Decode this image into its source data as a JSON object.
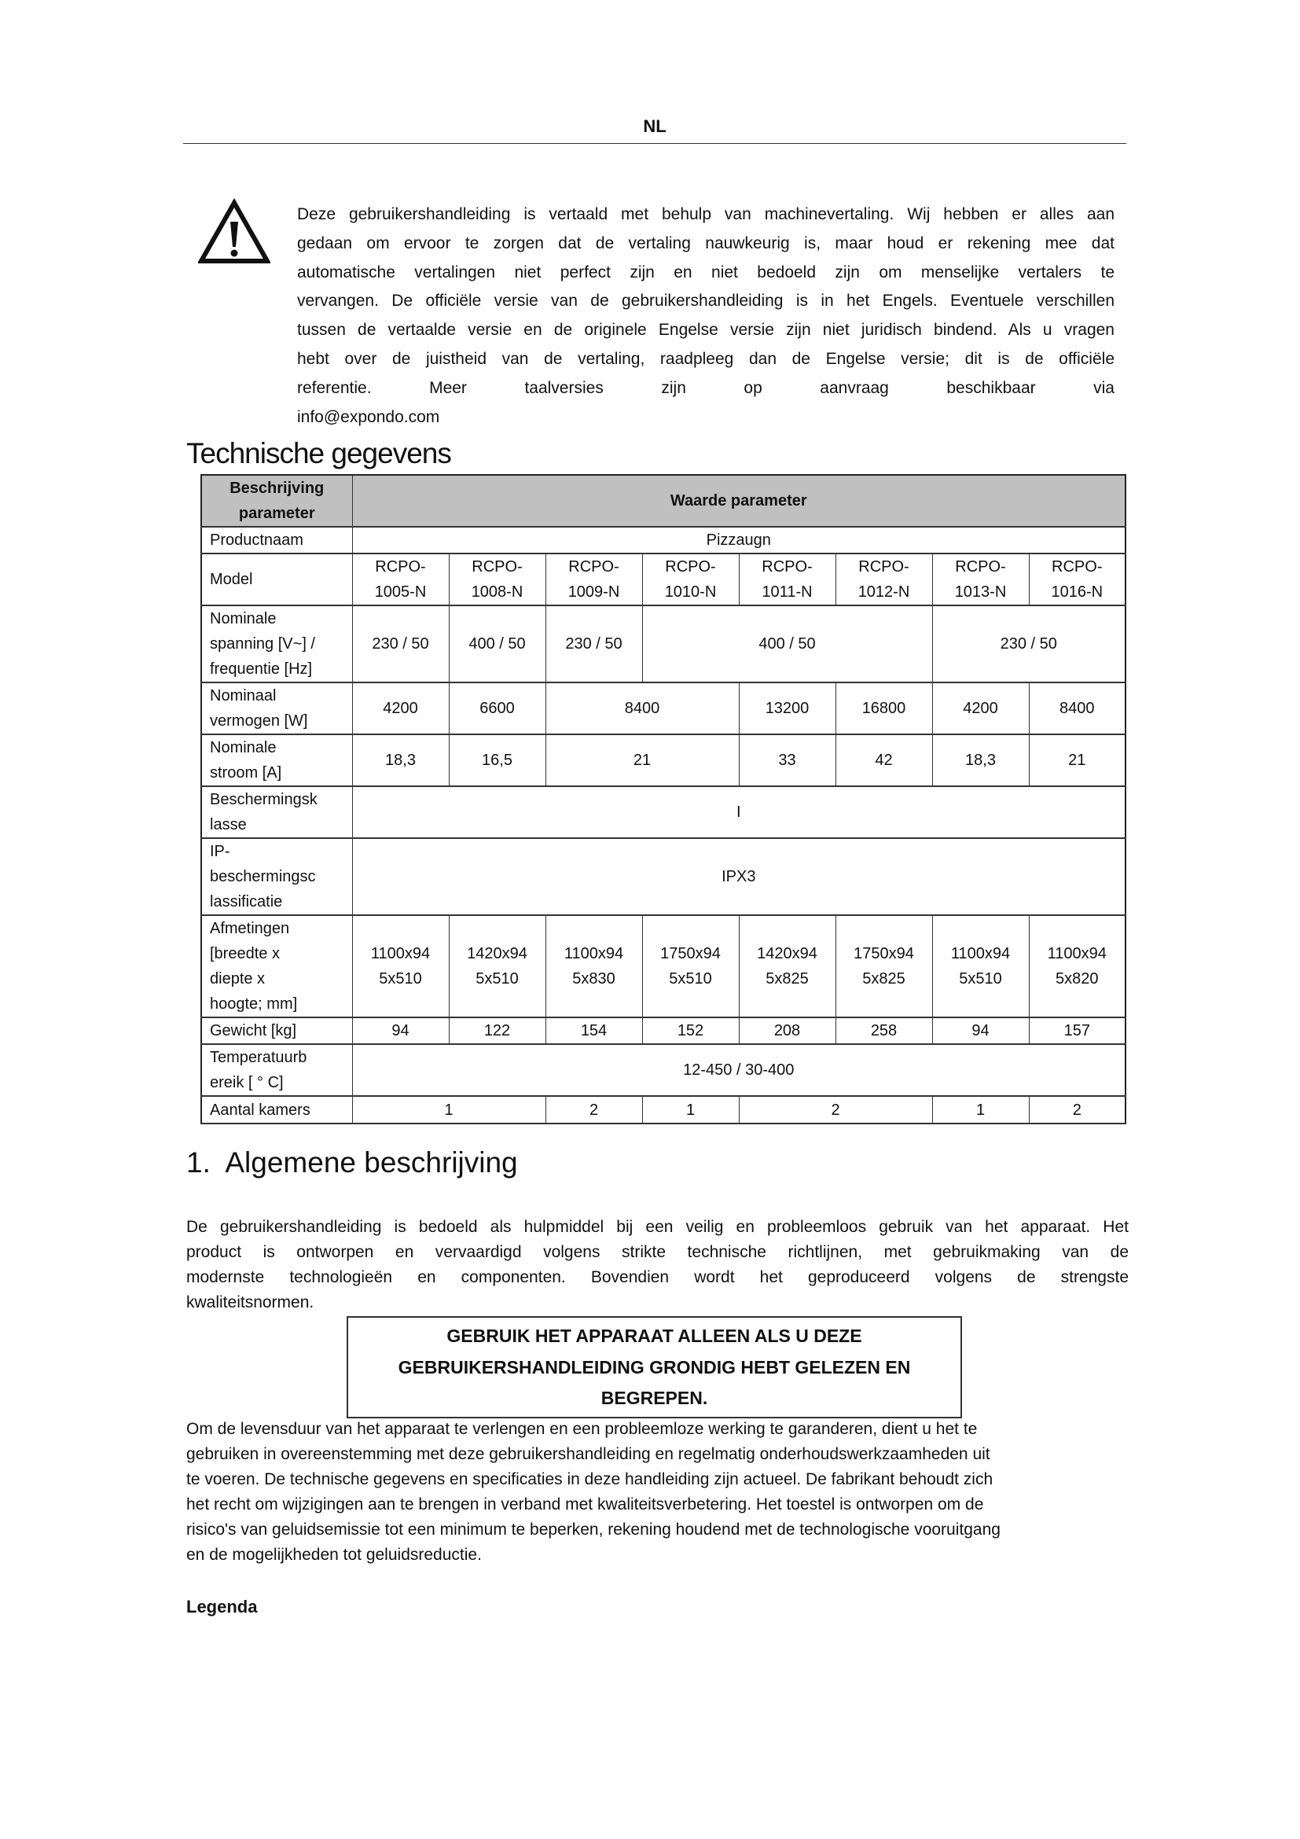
{
  "header": {
    "language": "NL"
  },
  "warning": {
    "icon": "warning-triangle-icon",
    "lines": [
      "Deze gebruikershandleiding is vertaald met behulp van machinevertaling. Wij hebben er alles aan",
      "gedaan om ervoor te zorgen dat de vertaling nauwkeurig is, maar houd er rekening mee dat",
      "automatische vertalingen niet perfect zijn en niet bedoeld zijn om menselijke vertalers te",
      "vervangen. De officiële versie van de gebruikershandleiding is in het Engels. Eventuele verschillen",
      "tussen de vertaalde versie en de originele Engelse versie zijn niet juridisch bindend. Als u vragen",
      "hebt over de juistheid van de vertaling, raadpleeg dan de Engelse versie; dit is de officiële",
      "referentie. Meer taalversies zijn op aanvraag beschikbaar via",
      "info@expondo.com"
    ]
  },
  "tech_title": "Technische gegevens",
  "table": {
    "header": {
      "label": [
        "Beschrijving",
        "parameter"
      ],
      "value": "Waarde parameter"
    },
    "rows": [
      {
        "label": [
          "Productnaam"
        ],
        "cells": [
          {
            "text": [
              "Pizzaugn"
            ],
            "span": 8
          }
        ]
      },
      {
        "label": [
          "Model"
        ],
        "cells": [
          {
            "text": [
              "RCPO-",
              "1005-N"
            ],
            "span": 1
          },
          {
            "text": [
              "RCPO-",
              "1008-N"
            ],
            "span": 1
          },
          {
            "text": [
              "RCPO-",
              "1009-N"
            ],
            "span": 1
          },
          {
            "text": [
              "RCPO-",
              "1010-N"
            ],
            "span": 1
          },
          {
            "text": [
              "RCPO-",
              "1011-N"
            ],
            "span": 1
          },
          {
            "text": [
              "RCPO-",
              "1012-N"
            ],
            "span": 1
          },
          {
            "text": [
              "RCPO-",
              "1013-N"
            ],
            "span": 1
          },
          {
            "text": [
              "RCPO-",
              "1016-N"
            ],
            "span": 1
          }
        ]
      },
      {
        "label": [
          "Nominale",
          "spanning [V~] /",
          "frequentie [Hz]"
        ],
        "cells": [
          {
            "text": [
              "230 / 50"
            ],
            "span": 1
          },
          {
            "text": [
              "400 / 50"
            ],
            "span": 1
          },
          {
            "text": [
              "230 / 50"
            ],
            "span": 1
          },
          {
            "text": [
              "400 / 50"
            ],
            "span": 3
          },
          {
            "text": [
              "230 / 50"
            ],
            "span": 2
          }
        ]
      },
      {
        "label": [
          "Nominaal",
          "vermogen [W]"
        ],
        "cells": [
          {
            "text": [
              "4200"
            ],
            "span": 1
          },
          {
            "text": [
              "6600"
            ],
            "span": 1
          },
          {
            "text": [
              "8400"
            ],
            "span": 2
          },
          {
            "text": [
              "13200"
            ],
            "span": 1
          },
          {
            "text": [
              "16800"
            ],
            "span": 1
          },
          {
            "text": [
              "4200"
            ],
            "span": 1
          },
          {
            "text": [
              "8400"
            ],
            "span": 1
          }
        ]
      },
      {
        "label": [
          "Nominale",
          "stroom [A]"
        ],
        "cells": [
          {
            "text": [
              "18,3"
            ],
            "span": 1
          },
          {
            "text": [
              "16,5"
            ],
            "span": 1
          },
          {
            "text": [
              "21"
            ],
            "span": 2
          },
          {
            "text": [
              "33"
            ],
            "span": 1
          },
          {
            "text": [
              "42"
            ],
            "span": 1
          },
          {
            "text": [
              "18,3"
            ],
            "span": 1
          },
          {
            "text": [
              "21"
            ],
            "span": 1
          }
        ]
      },
      {
        "label": [
          "Beschermingsk",
          "lasse"
        ],
        "cells": [
          {
            "text": [
              "I"
            ],
            "span": 8
          }
        ]
      },
      {
        "label": [
          "IP-",
          "beschermingsc",
          "lassificatie"
        ],
        "cells": [
          {
            "text": [
              "IPX3"
            ],
            "span": 8
          }
        ]
      },
      {
        "label": [
          "Afmetingen",
          "[breedte x",
          "diepte x",
          "hoogte; mm]"
        ],
        "cells": [
          {
            "text": [
              "1100x94",
              "5x510"
            ],
            "span": 1
          },
          {
            "text": [
              "1420x94",
              "5x510"
            ],
            "span": 1
          },
          {
            "text": [
              "1100x94",
              "5x830"
            ],
            "span": 1
          },
          {
            "text": [
              "1750x94",
              "5x510"
            ],
            "span": 1
          },
          {
            "text": [
              "1420x94",
              "5x825"
            ],
            "span": 1
          },
          {
            "text": [
              "1750x94",
              "5x825"
            ],
            "span": 1
          },
          {
            "text": [
              "1100x94",
              "5x510"
            ],
            "span": 1
          },
          {
            "text": [
              "1100x94",
              "5x820"
            ],
            "span": 1
          }
        ]
      },
      {
        "label": [
          "Gewicht [kg]"
        ],
        "cells": [
          {
            "text": [
              "94"
            ],
            "span": 1
          },
          {
            "text": [
              "122"
            ],
            "span": 1
          },
          {
            "text": [
              "154"
            ],
            "span": 1
          },
          {
            "text": [
              "152"
            ],
            "span": 1
          },
          {
            "text": [
              "208"
            ],
            "span": 1
          },
          {
            "text": [
              "258"
            ],
            "span": 1
          },
          {
            "text": [
              "94"
            ],
            "span": 1
          },
          {
            "text": [
              "157"
            ],
            "span": 1
          }
        ]
      },
      {
        "label": [
          "Temperatuurb",
          "ereik [ ° C]"
        ],
        "cells": [
          {
            "text": [
              "12-450 / 30-400"
            ],
            "span": 8
          }
        ]
      },
      {
        "label": [
          "Aantal kamers"
        ],
        "cells": [
          {
            "text": [
              "1"
            ],
            "span": 2
          },
          {
            "text": [
              "2"
            ],
            "span": 1
          },
          {
            "text": [
              "1"
            ],
            "span": 1
          },
          {
            "text": [
              "2"
            ],
            "span": 2
          },
          {
            "text": [
              "1"
            ],
            "span": 1
          },
          {
            "text": [
              "2"
            ],
            "span": 1
          }
        ]
      }
    ]
  },
  "general_title": "1.  Algemene beschrijving",
  "para1": [
    "De gebruikershandleiding is bedoeld als hulpmiddel bij een veilig en probleemloos gebruik van het apparaat. Het",
    "product is ontworpen en vervaardigd volgens strikte technische richtlijnen, met gebruikmaking van de",
    "modernste technologieën en componenten. Bovendien wordt het geproduceerd volgens de strengste",
    "kwaliteitsnormen."
  ],
  "notice": [
    "GEBRUIK HET APPARAAT ALLEEN ALS U DEZE",
    "GEBRUIKERSHANDLEIDING GRONDIG HEBT GELEZEN EN",
    "BEGREPEN."
  ],
  "para2": [
    "Om de levensduur van het apparaat te verlengen en een probleemloze werking te garanderen, dient u het te",
    "gebruiken in overeenstemming met deze gebruikershandleiding en regelmatig onderhoudswerkzaamheden uit",
    "te voeren. De technische gegevens en specificaties in deze handleiding zijn actueel. De fabrikant behoudt zich",
    "het recht om wijzigingen aan te brengen in verband met kwaliteitsverbetering. Het toestel is ontworpen om de",
    "risico's van geluidsemissie tot een minimum te beperken, rekening houdend met de technologische vooruitgang",
    "en de mogelijkheden tot geluidsreductie."
  ],
  "legenda": "Legenda",
  "colors": {
    "table_header_bg": "#c0c0c0",
    "text": "#111111"
  }
}
